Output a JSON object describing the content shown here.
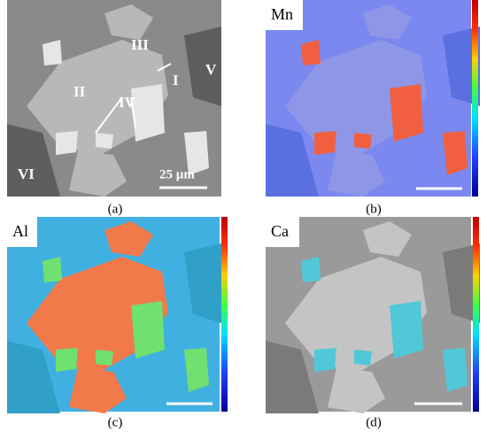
{
  "panels": [
    {
      "caption": "(a)",
      "labels": [
        "III",
        "II",
        "I",
        "IV",
        "V",
        "VI"
      ],
      "scale_bar": "25 µm"
    },
    {
      "caption": "(b)",
      "element": "Mn"
    },
    {
      "caption": "(c)",
      "element": "Al"
    },
    {
      "caption": "(d)",
      "element": "Ca"
    }
  ]
}
